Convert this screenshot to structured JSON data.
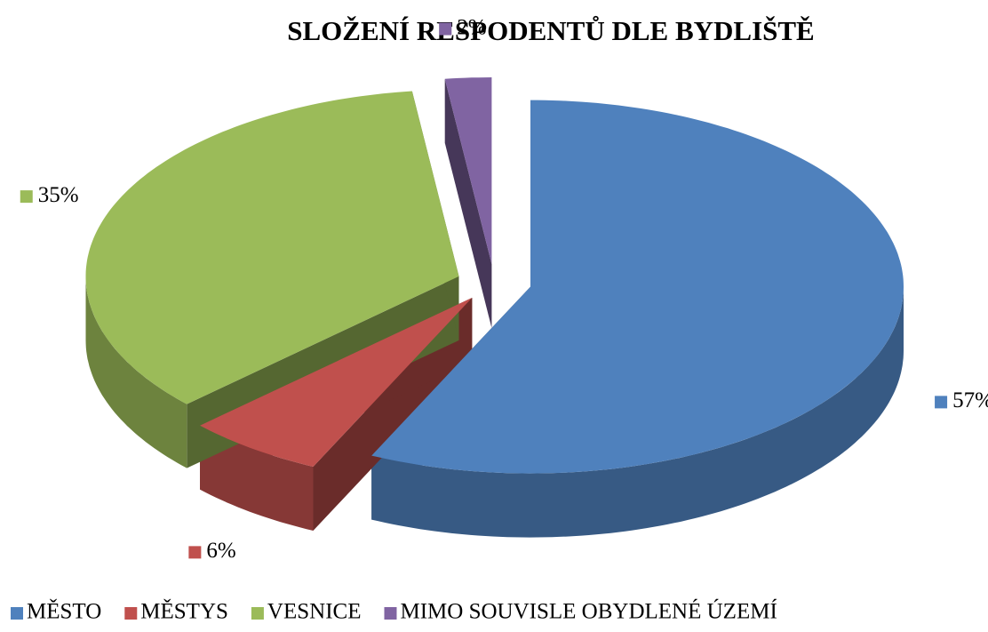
{
  "chart_data": {
    "type": "pie",
    "title": "SLOŽENÍ RESPODENTŮ DLE BYDLIŠTĚ",
    "categories": [
      "MĚSTO",
      "MĚSTYS",
      "VESNICE",
      "MIMO SOUVISLE OBYDLENÉ ÚZEMÍ"
    ],
    "values": [
      57,
      6,
      35,
      2
    ],
    "value_labels": [
      "57%",
      "6%",
      "35%",
      "2%"
    ],
    "colors": [
      "#4f81bd",
      "#c0504d",
      "#9bbb59",
      "#8064a2"
    ],
    "legend": "bottom"
  }
}
